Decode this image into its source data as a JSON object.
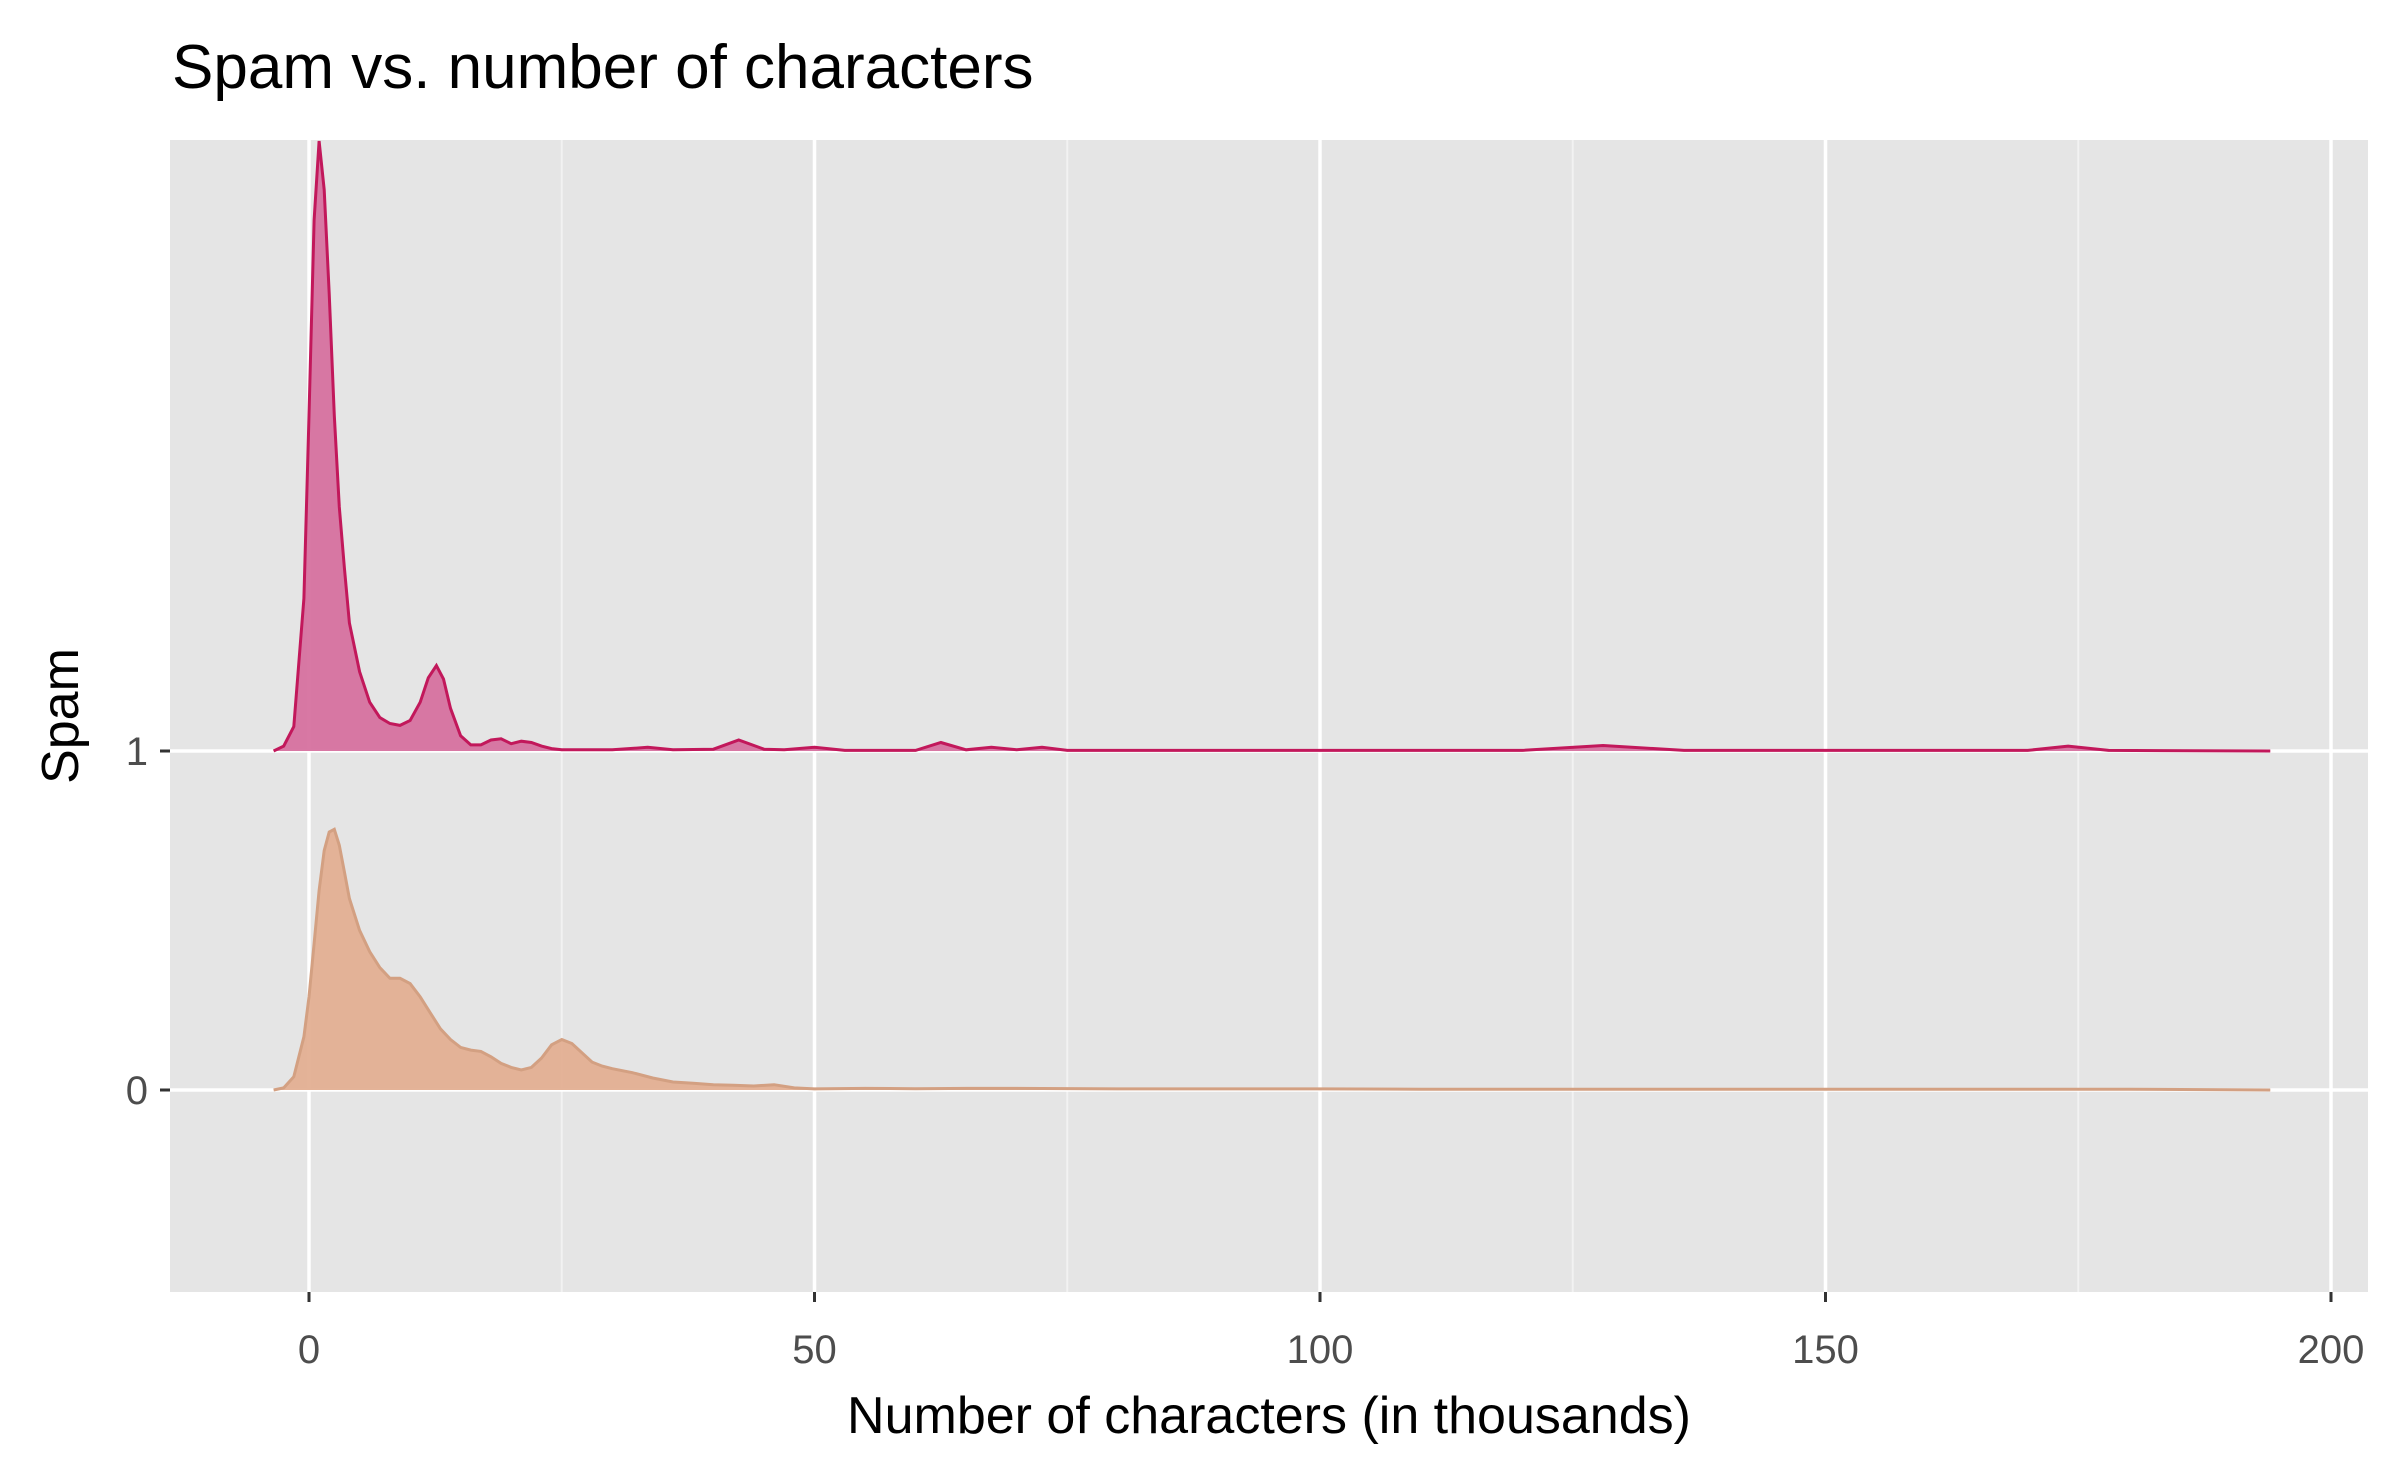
{
  "chart_data": {
    "type": "ridgeline-density",
    "title": "Spam vs. number of characters",
    "xlabel": "Number of characters (in thousands)",
    "ylabel": "Spam",
    "xlim": [
      -14,
      205
    ],
    "x_ticks": [
      0,
      50,
      100,
      150,
      200
    ],
    "y_categories": [
      "0",
      "1"
    ],
    "grid": true,
    "legend": "none",
    "background": "#E5E5E5",
    "series": [
      {
        "category": "1",
        "fill": "#D6719F",
        "stroke": "#C2185B",
        "x": [
          -3.5,
          -2.5,
          -1.5,
          -0.5,
          0,
          0.5,
          1,
          1.5,
          2,
          2.5,
          3,
          3.5,
          4,
          5,
          6,
          7,
          8,
          9,
          10,
          11,
          11.8,
          12.6,
          13.3,
          14,
          15,
          16,
          17,
          18,
          19,
          20,
          21,
          22,
          23,
          24,
          25,
          30,
          33.5,
          36,
          40,
          42.5,
          45,
          47,
          50,
          53,
          60,
          62.5,
          65,
          67.5,
          70,
          72.5,
          75,
          120,
          128,
          136,
          170,
          174,
          178,
          194
        ],
        "density": [
          0,
          0.008,
          0.04,
          0.25,
          0.55,
          0.87,
          1.0,
          0.92,
          0.75,
          0.55,
          0.4,
          0.3,
          0.21,
          0.13,
          0.08,
          0.055,
          0.045,
          0.042,
          0.05,
          0.08,
          0.12,
          0.14,
          0.118,
          0.07,
          0.025,
          0.01,
          0.01,
          0.018,
          0.02,
          0.012,
          0.016,
          0.014,
          0.008,
          0.004,
          0.002,
          0.002,
          0.006,
          0.002,
          0.003,
          0.018,
          0.003,
          0.002,
          0.006,
          0.001,
          0.001,
          0.014,
          0.002,
          0.006,
          0.002,
          0.006,
          0.001,
          0.001,
          0.009,
          0.001,
          0.001,
          0.008,
          0.001,
          0
        ]
      },
      {
        "category": "0",
        "fill": "#E3AF92",
        "stroke": "#D3A082",
        "x": [
          -3.5,
          -2.5,
          -1.5,
          -0.5,
          0,
          0.5,
          1,
          1.5,
          2,
          2.5,
          3,
          3.5,
          4,
          5,
          6,
          7,
          8,
          9,
          10,
          11,
          12,
          13,
          14,
          15,
          16,
          17,
          18,
          19,
          20,
          21,
          22,
          23,
          24,
          25,
          26,
          27,
          28,
          29,
          30,
          32,
          34,
          36,
          38,
          40,
          42,
          44,
          46,
          48,
          50,
          55,
          60,
          65,
          70,
          80,
          90,
          100,
          110,
          120,
          130,
          140,
          150,
          160,
          170,
          180,
          194
        ],
        "density": [
          0,
          0.008,
          0.05,
          0.2,
          0.35,
          0.55,
          0.75,
          0.9,
          0.97,
          0.98,
          0.92,
          0.82,
          0.72,
          0.6,
          0.52,
          0.46,
          0.42,
          0.42,
          0.4,
          0.35,
          0.29,
          0.23,
          0.19,
          0.16,
          0.15,
          0.145,
          0.125,
          0.1,
          0.085,
          0.075,
          0.085,
          0.12,
          0.17,
          0.19,
          0.175,
          0.14,
          0.105,
          0.09,
          0.08,
          0.065,
          0.045,
          0.03,
          0.025,
          0.02,
          0.018,
          0.015,
          0.02,
          0.008,
          0.004,
          0.006,
          0.005,
          0.006,
          0.006,
          0.004,
          0.004,
          0.004,
          0.003,
          0.003,
          0.003,
          0.003,
          0.003,
          0.003,
          0.003,
          0.003,
          0
        ]
      }
    ]
  }
}
